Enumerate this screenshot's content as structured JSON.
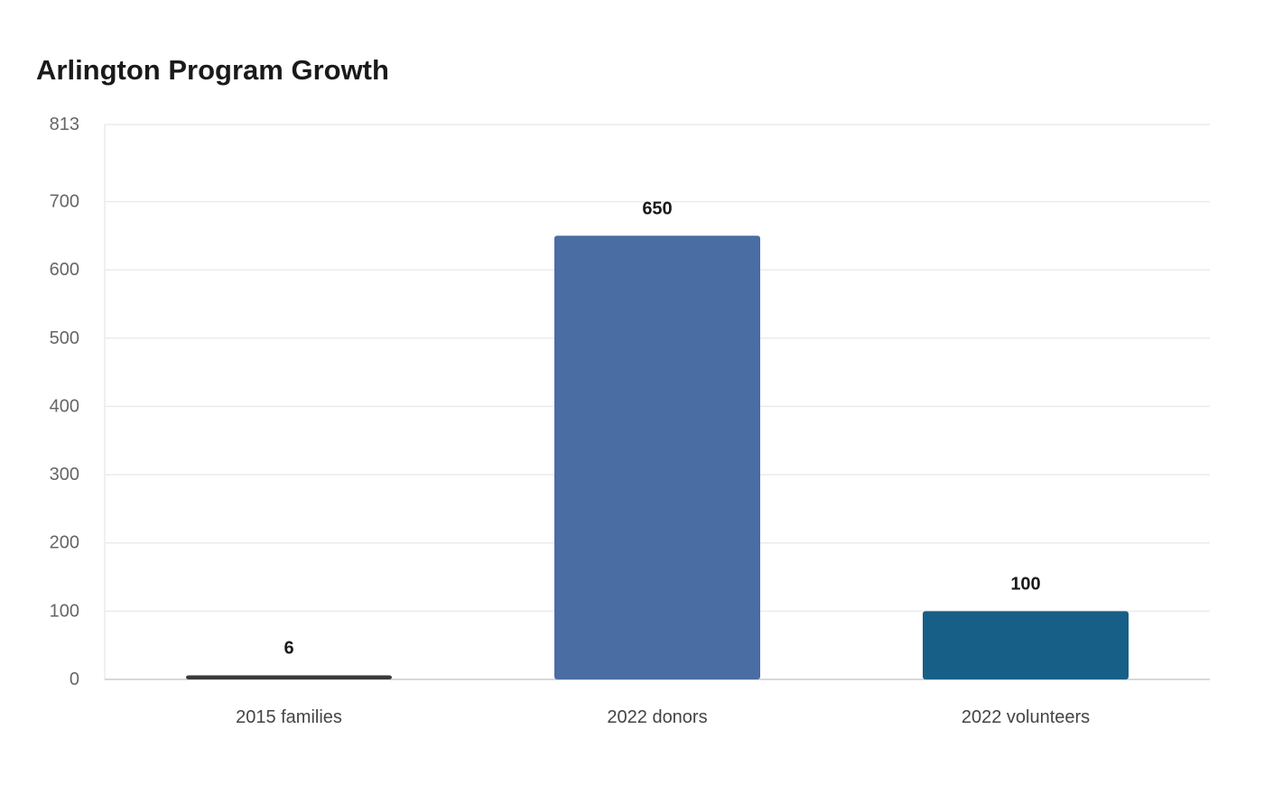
{
  "chart_data": {
    "type": "bar",
    "title": "Arlington Program Growth",
    "xlabel": "",
    "ylabel": "",
    "categories": [
      "2015 families",
      "2022 donors",
      "2022 volunteers"
    ],
    "values": [
      6,
      650,
      100
    ],
    "value_labels": [
      "6",
      "650",
      "100"
    ],
    "bar_colors": [
      "#3a3a3a",
      "#4a6da3",
      "#175f87"
    ],
    "ylim": [
      0,
      813
    ],
    "yticks": [
      0,
      100,
      200,
      300,
      400,
      500,
      600,
      700,
      813
    ],
    "ytick_labels": [
      "0",
      "100",
      "200",
      "300",
      "400",
      "500",
      "600",
      "700",
      "813"
    ],
    "grid": true,
    "legend": "none",
    "colors": {
      "grid": "#ebebeb",
      "axis": "#cccccc"
    }
  }
}
